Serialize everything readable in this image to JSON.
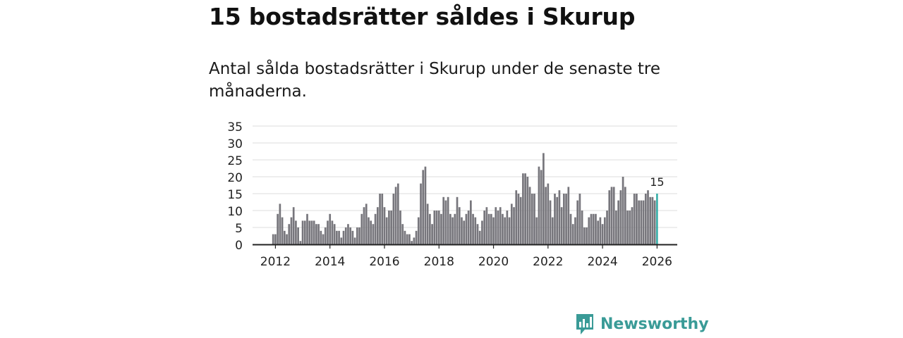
{
  "header": {
    "title": "15 bostadsrätter såldes i Skurup",
    "subtitle": "Antal sålda bostadsrätter i Skurup under de senaste tre månaderna."
  },
  "brand": {
    "name": "Newsworthy",
    "logo_icon": "bar-chart-speech-bubble-icon"
  },
  "colors": {
    "bar": "#77767c",
    "highlight": "#27a8a2",
    "grid": "#dddddd",
    "axis": "#222222",
    "brand": "#3a9b97"
  },
  "chart_data": {
    "type": "bar",
    "title": "15 bostadsrätter såldes i Skurup",
    "xlabel": "",
    "ylabel": "",
    "ylim": [
      0,
      35
    ],
    "yticks": [
      "0",
      "5",
      "10",
      "15",
      "20",
      "25",
      "30",
      "35"
    ],
    "xticks": [
      "2012",
      "2014",
      "2016",
      "2018",
      "2020",
      "2022",
      "2024",
      "2026"
    ],
    "x_start": "2011-12",
    "grid": true,
    "highlight_label": "15",
    "values": [
      3,
      3,
      9,
      12,
      8,
      4,
      3,
      6,
      8,
      11,
      7,
      5,
      1,
      7,
      7,
      9,
      7,
      7,
      7,
      6,
      6,
      4,
      3,
      5,
      7,
      9,
      7,
      6,
      4,
      4,
      2,
      4,
      5,
      6,
      5,
      4,
      2,
      5,
      5,
      9,
      11,
      12,
      8,
      7,
      6,
      9,
      11,
      15,
      15,
      11,
      8,
      10,
      10,
      15,
      17,
      18,
      10,
      6,
      4,
      3,
      3,
      1,
      2,
      4,
      8,
      18,
      22,
      23,
      12,
      9,
      6,
      10,
      10,
      10,
      9,
      14,
      13,
      14,
      9,
      8,
      9,
      14,
      11,
      8,
      7,
      9,
      10,
      13,
      9,
      8,
      6,
      4,
      7,
      10,
      11,
      9,
      9,
      8,
      11,
      10,
      11,
      9,
      8,
      10,
      8,
      12,
      11,
      16,
      15,
      14,
      21,
      21,
      20,
      17,
      15,
      15,
      8,
      23,
      22,
      27,
      17,
      18,
      13,
      8,
      15,
      14,
      16,
      11,
      15,
      15,
      17,
      9,
      6,
      8,
      13,
      15,
      10,
      5,
      5,
      8,
      9,
      9,
      9,
      7,
      8,
      6,
      8,
      10,
      16,
      17,
      17,
      10,
      13,
      16,
      20,
      17,
      10,
      10,
      11,
      15,
      15,
      13,
      13,
      13,
      15,
      16,
      14,
      14,
      13,
      15
    ]
  }
}
